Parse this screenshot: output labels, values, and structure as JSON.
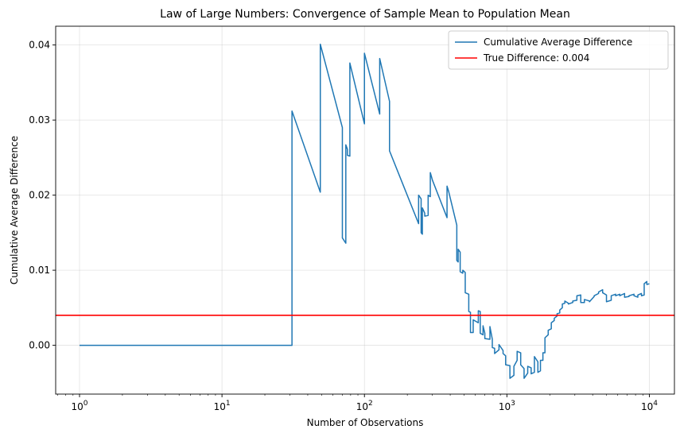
{
  "chart_data": {
    "type": "line",
    "title": "Law of Large Numbers: Convergence of Sample Mean to Population Mean",
    "xlabel": "Number of Observations",
    "ylabel": "Cumulative Average Difference",
    "xscale": "log",
    "xlim": [
      0.68,
      15000
    ],
    "ylim": [
      -0.0065,
      0.0425
    ],
    "xticks": [
      {
        "value": 1,
        "base": "10",
        "exp": "0"
      },
      {
        "value": 10,
        "base": "10",
        "exp": "1"
      },
      {
        "value": 100,
        "base": "10",
        "exp": "2"
      },
      {
        "value": 1000,
        "base": "10",
        "exp": "3"
      },
      {
        "value": 10000,
        "base": "10",
        "exp": "4"
      }
    ],
    "yticks": [
      {
        "value": 0.0,
        "label": "0.00"
      },
      {
        "value": 0.01,
        "label": "0.01"
      },
      {
        "value": 0.02,
        "label": "0.02"
      },
      {
        "value": 0.03,
        "label": "0.03"
      },
      {
        "value": 0.04,
        "label": "0.04"
      }
    ],
    "grid": true,
    "legend_position": "top-right",
    "series": [
      {
        "name": "Cumulative Average Difference",
        "color": "#1f77b4",
        "x": [
          1,
          31,
          31,
          49,
          49,
          70,
          70,
          74,
          74,
          76,
          76,
          79,
          79,
          100,
          100,
          128,
          128,
          150,
          150,
          240,
          240,
          250,
          250,
          255,
          255,
          265,
          265,
          280,
          280,
          290,
          290,
          295,
          295,
          300,
          300,
          380,
          380,
          390,
          390,
          445,
          445,
          455,
          455,
          470,
          470,
          490,
          490,
          510,
          510,
          540,
          540,
          555,
          555,
          580,
          580,
          630,
          630,
          650,
          650,
          680,
          680,
          700,
          700,
          760,
          760,
          790,
          790,
          820,
          820,
          880,
          880,
          940,
          940,
          980,
          980,
          1050,
          1050,
          1120,
          1120,
          1180,
          1180,
          1250,
          1250,
          1320,
          1320,
          1400,
          1400,
          1480,
          1480,
          1560,
          1560,
          1650,
          1650,
          1720,
          1720,
          1790,
          1790,
          1850,
          1850,
          1950,
          1950,
          2050,
          2050,
          2150,
          2150,
          2250,
          2250,
          2350,
          2350,
          2450,
          2450,
          2550,
          2550,
          2700,
          2700,
          2900,
          2900,
          3100,
          3100,
          3300,
          3300,
          3500,
          3500,
          3800,
          3800,
          4100,
          4100,
          4400,
          4400,
          4700,
          4700,
          5000,
          5000,
          5400,
          5400,
          5800,
          5800,
          6200,
          6200,
          6700,
          6700,
          7200,
          7200,
          7800,
          7800,
          8300,
          8300,
          8800,
          8800,
          9200,
          9200,
          9600,
          9600,
          10000
        ],
        "y": [
          0.0,
          0.0,
          0.0312,
          0.0204,
          0.0401,
          0.029,
          0.0143,
          0.0136,
          0.0267,
          0.0261,
          0.0253,
          0.0252,
          0.0376,
          0.0295,
          0.0389,
          0.0308,
          0.0382,
          0.0325,
          0.0259,
          0.0162,
          0.02,
          0.0195,
          0.015,
          0.0148,
          0.0183,
          0.0176,
          0.0172,
          0.0173,
          0.02,
          0.0198,
          0.023,
          0.0225,
          0.0225,
          0.022,
          0.022,
          0.017,
          0.0212,
          0.0205,
          0.0205,
          0.016,
          0.0113,
          0.0111,
          0.0128,
          0.0124,
          0.0098,
          0.0096,
          0.01,
          0.0097,
          0.007,
          0.0068,
          0.0045,
          0.0044,
          0.0017,
          0.0017,
          0.0034,
          0.003,
          0.0046,
          0.0045,
          0.0016,
          0.0014,
          0.0026,
          0.0016,
          0.0009,
          0.0008,
          0.0025,
          0.0008,
          -0.0003,
          -0.0004,
          -0.0011,
          -0.0006,
          0.0001,
          -0.0007,
          -0.0011,
          -0.0014,
          -0.0026,
          -0.0027,
          -0.0044,
          -0.004,
          -0.0028,
          -0.002,
          -0.0008,
          -0.001,
          -0.0026,
          -0.0031,
          -0.0044,
          -0.0037,
          -0.0028,
          -0.003,
          -0.0038,
          -0.0036,
          -0.0015,
          -0.0022,
          -0.0036,
          -0.0034,
          -0.002,
          -0.002,
          -0.001,
          -0.001,
          0.001,
          0.0014,
          0.002,
          0.0022,
          0.003,
          0.0033,
          0.0036,
          0.0039,
          0.0042,
          0.0043,
          0.0047,
          0.005,
          0.0055,
          0.0056,
          0.0059,
          0.0056,
          0.0055,
          0.0057,
          0.0059,
          0.006,
          0.0066,
          0.0067,
          0.0057,
          0.0057,
          0.0061,
          0.0059,
          0.0058,
          0.0065,
          0.0066,
          0.0069,
          0.0071,
          0.0074,
          0.007,
          0.0067,
          0.0058,
          0.006,
          0.0066,
          0.0068,
          0.0066,
          0.0068,
          0.0066,
          0.0069,
          0.0064,
          0.0065,
          0.0066,
          0.0068,
          0.0066,
          0.0064,
          0.0067,
          0.0069,
          0.0066,
          0.0067,
          0.0082,
          0.0085,
          0.0081,
          0.0082
        ]
      },
      {
        "name": "True Difference: 0.004",
        "color": "#ff0000",
        "type": "hline",
        "y": 0.004
      }
    ]
  }
}
